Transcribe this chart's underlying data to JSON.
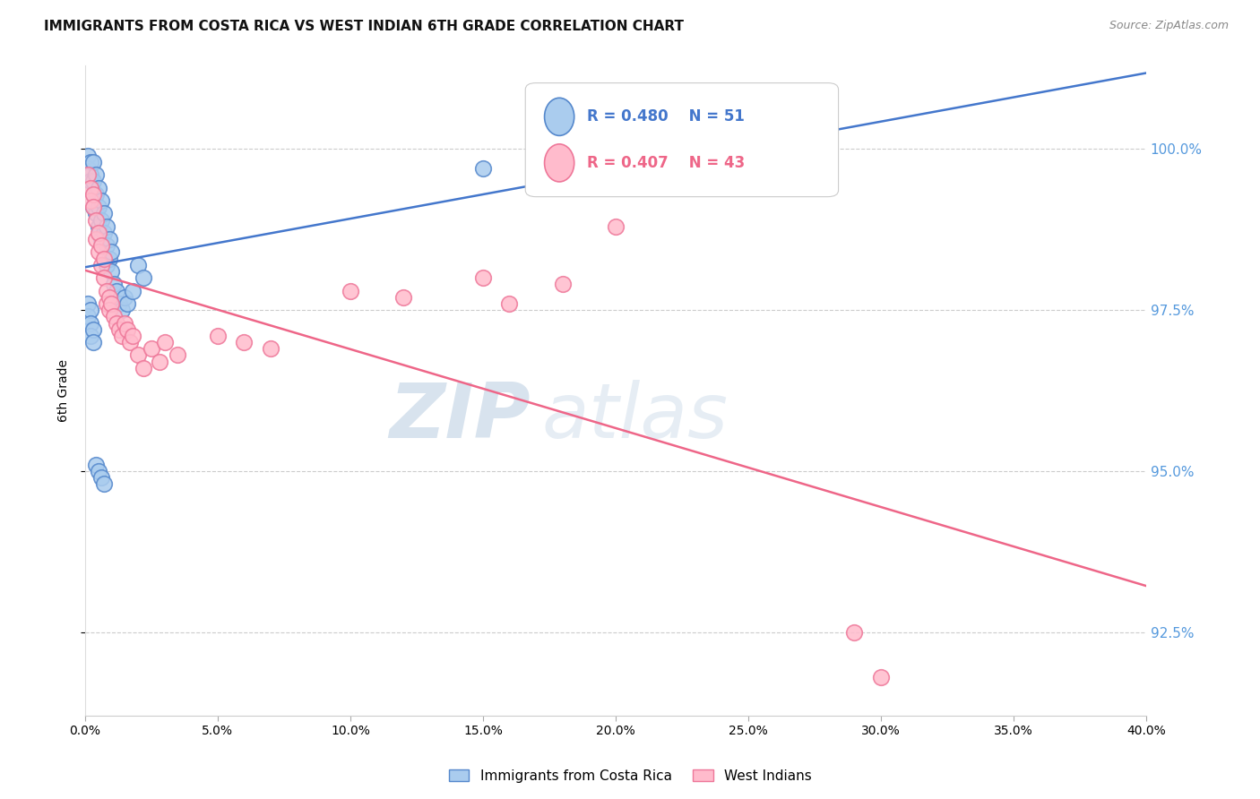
{
  "title": "IMMIGRANTS FROM COSTA RICA VS WEST INDIAN 6TH GRADE CORRELATION CHART",
  "source": "Source: ZipAtlas.com",
  "ylabel": "6th Grade",
  "yticks": [
    92.5,
    95.0,
    97.5,
    100.0
  ],
  "ytick_labels": [
    "92.5%",
    "95.0%",
    "97.5%",
    "100.0%"
  ],
  "xmin": 0.0,
  "xmax": 0.4,
  "ymin": 91.2,
  "ymax": 101.3,
  "legend_label1": "Immigrants from Costa Rica",
  "legend_label2": "West Indians",
  "r1": 0.48,
  "n1": 51,
  "r2": 0.407,
  "n2": 43,
  "blue_color": "#AACCEE",
  "pink_color": "#FFBBCC",
  "blue_edge_color": "#5588CC",
  "pink_edge_color": "#EE7799",
  "blue_line_color": "#4477CC",
  "pink_line_color": "#EE6688",
  "watermark_zip": "ZIP",
  "watermark_atlas": "atlas",
  "blue_x": [
    0.001,
    0.001,
    0.002,
    0.002,
    0.002,
    0.003,
    0.003,
    0.003,
    0.003,
    0.004,
    0.004,
    0.004,
    0.005,
    0.005,
    0.005,
    0.006,
    0.006,
    0.006,
    0.007,
    0.007,
    0.008,
    0.008,
    0.008,
    0.009,
    0.009,
    0.01,
    0.01,
    0.011,
    0.012,
    0.013,
    0.014,
    0.015,
    0.016,
    0.018,
    0.02,
    0.022,
    0.001,
    0.001,
    0.002,
    0.002,
    0.002,
    0.003,
    0.003,
    0.004,
    0.005,
    0.006,
    0.007,
    0.15,
    0.19,
    0.22,
    0.25
  ],
  "blue_y": [
    99.9,
    99.7,
    99.8,
    99.6,
    99.5,
    99.8,
    99.5,
    99.3,
    99.1,
    99.6,
    99.3,
    99.0,
    99.4,
    99.1,
    98.8,
    99.2,
    98.9,
    98.6,
    99.0,
    98.7,
    98.8,
    98.5,
    98.2,
    98.6,
    98.3,
    98.4,
    98.1,
    97.9,
    97.8,
    97.6,
    97.5,
    97.7,
    97.6,
    97.8,
    98.2,
    98.0,
    97.6,
    97.4,
    97.5,
    97.3,
    97.1,
    97.2,
    97.0,
    95.1,
    95.0,
    94.9,
    94.8,
    99.7,
    99.8,
    99.85,
    99.9
  ],
  "pink_x": [
    0.001,
    0.002,
    0.002,
    0.003,
    0.003,
    0.004,
    0.004,
    0.005,
    0.005,
    0.006,
    0.006,
    0.007,
    0.007,
    0.008,
    0.008,
    0.009,
    0.009,
    0.01,
    0.011,
    0.012,
    0.013,
    0.014,
    0.015,
    0.016,
    0.017,
    0.018,
    0.02,
    0.022,
    0.025,
    0.028,
    0.03,
    0.035,
    0.05,
    0.06,
    0.07,
    0.1,
    0.12,
    0.15,
    0.16,
    0.18,
    0.2,
    0.29,
    0.3
  ],
  "pink_y": [
    99.6,
    99.4,
    99.2,
    99.3,
    99.1,
    98.9,
    98.6,
    98.7,
    98.4,
    98.5,
    98.2,
    98.3,
    98.0,
    97.8,
    97.6,
    97.7,
    97.5,
    97.6,
    97.4,
    97.3,
    97.2,
    97.1,
    97.3,
    97.2,
    97.0,
    97.1,
    96.8,
    96.6,
    96.9,
    96.7,
    97.0,
    96.8,
    97.1,
    97.0,
    96.9,
    97.8,
    97.7,
    98.0,
    97.6,
    97.9,
    98.8,
    92.5,
    91.8
  ]
}
